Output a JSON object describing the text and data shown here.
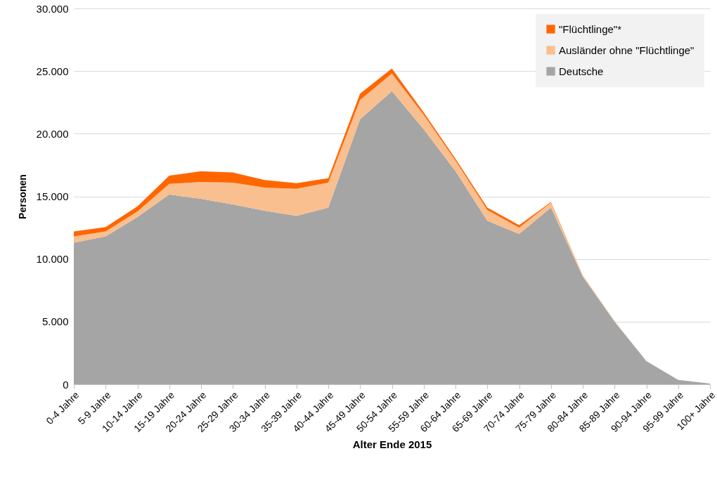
{
  "chart_data": {
    "type": "area",
    "stacked": true,
    "xlabel": "Alter Ende 2015",
    "ylabel": "Personen",
    "categories": [
      "0-4 Jahre",
      "5-9 Jahre",
      "10-14 Jahre",
      "15-19 Jahre",
      "20-24 Jahre",
      "25-29 Jahre",
      "30-34 Jahre",
      "35-39 Jahre",
      "40-44 Jahre",
      "45-49 Jahre",
      "50-54 Jahre",
      "55-59 Jahre",
      "60-64 Jahre",
      "65-69 Jahre",
      "70-74 Jahre",
      "75-79 Jahre",
      "80-84 Jahre",
      "85-89 Jahre",
      "90-94 Jahre",
      "95-99 Jahre",
      "100+ Jahre"
    ],
    "series": [
      {
        "name": "Deutsche",
        "color": "#a5a5a5",
        "values": [
          11300,
          11800,
          13350,
          15150,
          14800,
          14350,
          13850,
          13450,
          14100,
          21150,
          23400,
          20350,
          17000,
          13050,
          12000,
          14100,
          8600,
          5000,
          1850,
          350,
          50
        ]
      },
      {
        "name": "Ausländer ohne \"Flüchtlinge\"",
        "color": "#f9bf8f",
        "values": [
          500,
          400,
          450,
          850,
          1350,
          1750,
          1850,
          2150,
          2000,
          1550,
          1400,
          1150,
          850,
          850,
          500,
          400,
          100,
          50,
          0,
          0,
          0
        ]
      },
      {
        "name": "\"Flüchtlinge\"*",
        "color": "#ff6600",
        "values": [
          400,
          350,
          400,
          650,
          850,
          800,
          600,
          450,
          350,
          500,
          400,
          200,
          150,
          200,
          200,
          50,
          0,
          0,
          0,
          0,
          0
        ]
      }
    ],
    "ylim": [
      0,
      30000
    ],
    "yticks": [
      {
        "value": 0,
        "label": "0"
      },
      {
        "value": 5000,
        "label": "5.000"
      },
      {
        "value": 10000,
        "label": "10.000"
      },
      {
        "value": 15000,
        "label": "15.000"
      },
      {
        "value": 20000,
        "label": "20.000"
      },
      {
        "value": 25000,
        "label": "25.000"
      },
      {
        "value": 30000,
        "label": "30.000"
      }
    ],
    "grid": "y",
    "legend": "top right"
  }
}
